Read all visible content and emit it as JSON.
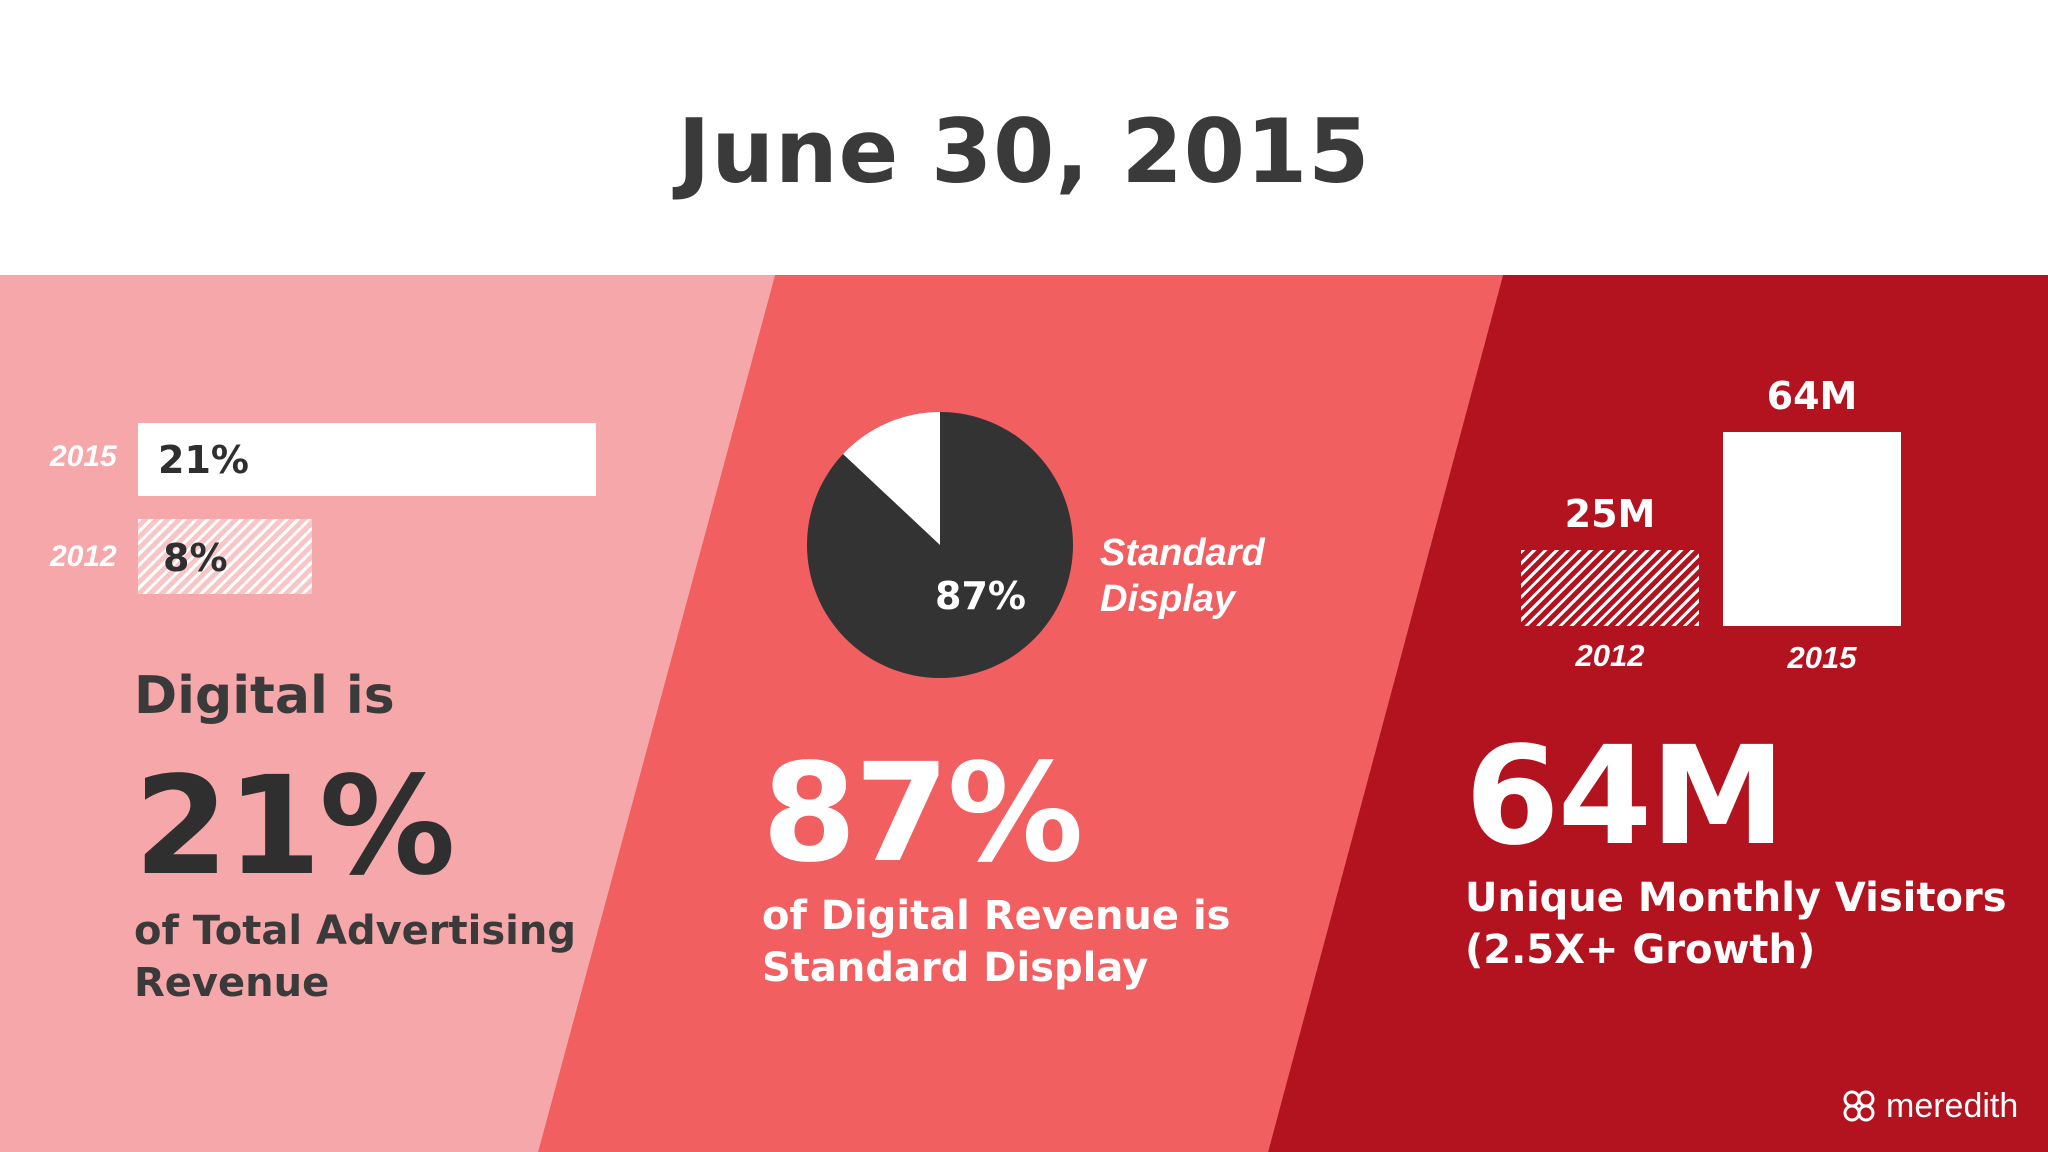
{
  "title": "June 30, 2015",
  "colors": {
    "panel_left": "#f6a7aa",
    "panel_middle": "#f15f61",
    "panel_right": "#b3131f",
    "dark": "#333333",
    "white": "#ffffff"
  },
  "panel_left": {
    "intro": "Digital is",
    "big_stat": "21%",
    "description_line1": "of Total Advertising",
    "description_line2": "Revenue"
  },
  "panel_middle": {
    "big_stat": "87%",
    "description_line1": "of Digital Revenue is",
    "description_line2": "Standard Display",
    "pie_legend_line1": "Standard",
    "pie_legend_line2": "Display"
  },
  "panel_right": {
    "big_stat": "64M",
    "description_line1": "Unique Monthly Visitors",
    "description_line2": "(2.5X+ Growth)"
  },
  "logo": {
    "text": "meredith",
    "icon": "meredith-logo-icon"
  },
  "chart_data": [
    {
      "type": "bar",
      "orientation": "horizontal",
      "categories": [
        "2015",
        "2012"
      ],
      "values": [
        21,
        8
      ],
      "value_labels": [
        "21%",
        "8%"
      ],
      "xlim": [
        0,
        100
      ],
      "fill": [
        "solid",
        "hatched"
      ],
      "title": "",
      "xlabel": "",
      "ylabel": ""
    },
    {
      "type": "pie",
      "labels": [
        "Standard Display",
        ""
      ],
      "values": [
        87,
        13
      ],
      "value_labels": [
        "87%",
        ""
      ],
      "colors": [
        "#333333",
        "#ffffff"
      ]
    },
    {
      "type": "bar",
      "orientation": "vertical",
      "categories": [
        "2012",
        "2015"
      ],
      "values": [
        25,
        64
      ],
      "value_labels": [
        "25M",
        "64M"
      ],
      "ylim": [
        0,
        64
      ],
      "fill": [
        "hatched",
        "solid"
      ],
      "title": "",
      "xlabel": "",
      "ylabel": ""
    }
  ]
}
